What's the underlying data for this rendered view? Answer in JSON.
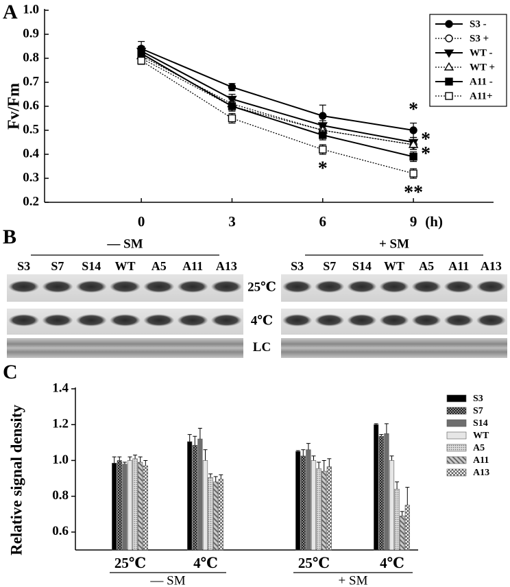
{
  "panel_labels": [
    "A",
    "B",
    "C"
  ],
  "chart_data": [
    {
      "type": "line",
      "ylabel": "Fv/Fm",
      "x_unit": "(h)",
      "x": [
        0,
        3,
        6,
        9
      ],
      "xlim": [
        -3.2,
        11.65
      ],
      "xticks": [
        0,
        3,
        6,
        9
      ],
      "ylim": [
        0.2,
        1
      ],
      "yticks": [
        0.2,
        0.3,
        0.4,
        0.5,
        0.6,
        0.7,
        0.8,
        0.9,
        {
          "value": 1,
          "label": "1.0"
        }
      ],
      "legend": "upper right",
      "series": [
        {
          "name": "S3 -",
          "color": "#000000",
          "marker": "circle",
          "filled": true,
          "dash": false,
          "values": [
            0.84,
            0.68,
            0.56,
            0.5
          ],
          "errors": [
            0.03,
            0.015,
            0.045,
            0.03
          ]
        },
        {
          "name": "S3 +",
          "color": "#000000",
          "marker": "circle",
          "filled": false,
          "dash": true,
          "values": [
            0.8,
            0.6,
            0.5,
            0.44
          ],
          "errors": [
            0.02,
            0.02,
            0.02,
            0.02
          ]
        },
        {
          "name": "WT -",
          "color": "#000000",
          "marker": "triangle-down",
          "filled": true,
          "dash": false,
          "values": [
            0.83,
            0.63,
            0.52,
            0.45
          ],
          "errors": [
            0.02,
            0.02,
            0.02,
            0.02
          ]
        },
        {
          "name": "WT +",
          "color": "#000000",
          "marker": "triangle-up",
          "filled": false,
          "dash": true,
          "values": [
            0.81,
            0.61,
            0.5,
            0.44
          ],
          "errors": [
            0.02,
            0.02,
            0.02,
            0.02
          ]
        },
        {
          "name": "A11 -",
          "color": "#000000",
          "marker": "square",
          "filled": true,
          "dash": false,
          "values": [
            0.82,
            0.6,
            0.48,
            0.39
          ],
          "errors": [
            0.02,
            0.02,
            0.02,
            0.02
          ]
        },
        {
          "name": "A11+",
          "color": "#000000",
          "marker": "square",
          "filled": false,
          "dash": true,
          "values": [
            0.79,
            0.55,
            0.42,
            0.32
          ],
          "errors": [
            0.015,
            0.02,
            0.02,
            0.02
          ]
        }
      ],
      "annotations": [
        {
          "text": "*",
          "series": 0,
          "point": 3,
          "side": "above"
        },
        {
          "text": "*",
          "series": 2,
          "point": 3,
          "side": "right"
        },
        {
          "text": "*",
          "series": 4,
          "point": 3,
          "side": "right"
        },
        {
          "text": "**",
          "series": 5,
          "point": 3,
          "side": "below"
        },
        {
          "text": "*",
          "series": 5,
          "point": 2,
          "side": "below"
        }
      ]
    },
    {
      "type": "bar",
      "ylabel": "Relative signal density",
      "categories": [
        "25℃",
        "4℃",
        "25℃",
        "4℃"
      ],
      "category_groups": [
        "— SM",
        "+ SM"
      ],
      "ylim": [
        0.5,
        1.4
      ],
      "yticks": [
        0.6,
        0.8,
        {
          "value": 1,
          "label": "1.0"
        },
        1.2,
        1.4
      ],
      "legend": "upper right",
      "series": [
        {
          "name": "S3",
          "color": "#000000",
          "pattern": null,
          "values": [
            0.985,
            1.105,
            1.05,
            1.2
          ],
          "errors": [
            0.035,
            0.04,
            0.005,
            0.005
          ]
        },
        {
          "name": "S7",
          "color": "#333333",
          "pattern": "checker",
          "values": [
            1.0,
            1.085,
            1.025,
            1.135
          ],
          "errors": [
            0.02,
            0.05,
            0.035,
            0.01
          ]
        },
        {
          "name": "S14",
          "color": "#6e6e6e",
          "pattern": null,
          "values": [
            0.98,
            1.12,
            1.06,
            1.15
          ],
          "errors": [
            0.01,
            0.06,
            0.035,
            0.055
          ]
        },
        {
          "name": "WT",
          "color": "#e6e6e6",
          "pattern": null,
          "values": [
            1.0,
            1.0,
            1.0,
            1.0
          ],
          "errors": [
            0.02,
            0.06,
            0.025,
            0.025
          ]
        },
        {
          "name": "A5",
          "color": "#bdbdbd",
          "pattern": "dots",
          "values": [
            1.01,
            0.905,
            0.955,
            0.84
          ],
          "errors": [
            0.02,
            0.02,
            0.035,
            0.04
          ]
        },
        {
          "name": "A11",
          "color": "#9a9a9a",
          "pattern": "hatch",
          "values": [
            0.99,
            0.88,
            0.94,
            0.69
          ],
          "errors": [
            0.03,
            0.03,
            0.06,
            0.025
          ]
        },
        {
          "name": "A13",
          "color": "#ffffff",
          "pattern": "cross",
          "values": [
            0.97,
            0.895,
            0.965,
            0.75
          ],
          "errors": [
            0.03,
            0.025,
            0.045,
            0.1
          ]
        }
      ]
    }
  ],
  "blot": {
    "groups": [
      {
        "label": "— SM",
        "lanes": [
          "S3",
          "S7",
          "S14",
          "WT",
          "A5",
          "A11",
          "A13"
        ]
      },
      {
        "label": "+ SM",
        "lanes": [
          "S3",
          "S7",
          "S14",
          "WT",
          "A5",
          "A11",
          "A13"
        ]
      }
    ],
    "rows": [
      "25℃",
      "4℃",
      "LC"
    ]
  }
}
